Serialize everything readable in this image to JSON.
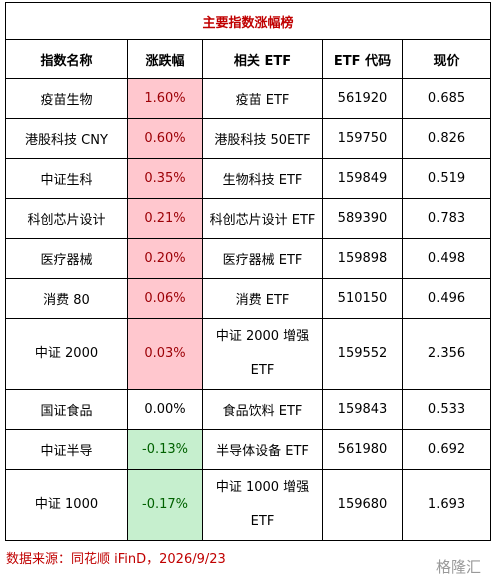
{
  "title": "主要指数涨幅榜",
  "columns": [
    "指数名称",
    "涨跌幅",
    "相关 ETF",
    "ETF 代码",
    "现价"
  ],
  "rows": [
    [
      "疫苗生物",
      "1.60%",
      "疫苗 ETF",
      "561920",
      "0.685"
    ],
    [
      "港股科技 CNY",
      "0.60%",
      "港股科技 50ETF",
      "159750",
      "0.826"
    ],
    [
      "中证生科",
      "0.35%",
      "生物科技 ETF",
      "159849",
      "0.519"
    ],
    [
      "科创芯片设计",
      "0.21%",
      "科创芯片设计 ETF",
      "589390",
      "0.783"
    ],
    [
      "医疗器械",
      "0.20%",
      "医疗器械 ETF",
      "159898",
      "0.498"
    ],
    [
      "消费 80",
      "0.06%",
      "消费 ETF",
      "510150",
      "0.496"
    ],
    [
      "中证 2000",
      "0.03%",
      "中证 2000 增强\nETF",
      "159552",
      "2.356"
    ],
    [
      "国证食品",
      "0.00%",
      "食品饮料 ETF",
      "159843",
      "0.533"
    ],
    [
      "中证半导",
      "-0.13%",
      "半导体设备 ETF",
      "561980",
      "0.692"
    ],
    [
      "中证 1000",
      "-0.17%",
      "中证 1000 增强\nETF",
      "159680",
      "1.693"
    ]
  ],
  "source": "数据来源：同花顺 iFinD，2026/9/23",
  "watermark": "格隆汇"
}
